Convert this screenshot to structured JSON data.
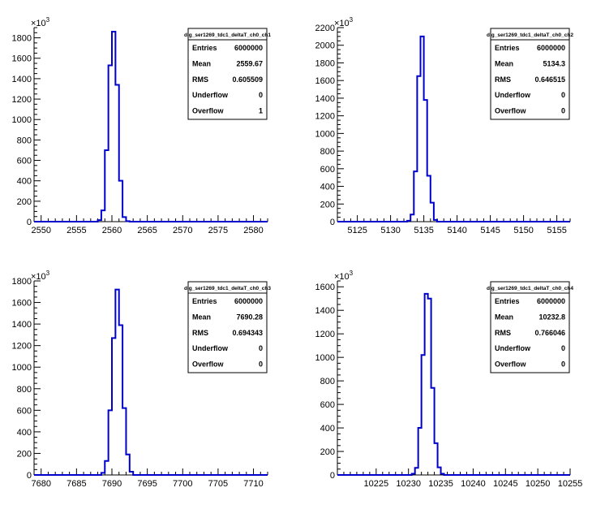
{
  "chart_data": [
    {
      "type": "bar",
      "title": "dig_ser1269_tdc1_deltaT_ch0_ch1",
      "exponent_label": "×10³",
      "xlim": [
        2549,
        2582
      ],
      "xticks": [
        "2550",
        "2555",
        "2560",
        "2565",
        "2570",
        "2575",
        "2580"
      ],
      "ylim": [
        0,
        1900
      ],
      "yticks": [
        "0",
        "200",
        "400",
        "600",
        "800",
        "1000",
        "1200",
        "1400",
        "1600",
        "1800"
      ],
      "bin_width": 0.5,
      "bins": [
        {
          "x": 2558.0,
          "y": 15
        },
        {
          "x": 2558.5,
          "y": 110
        },
        {
          "x": 2559.0,
          "y": 700
        },
        {
          "x": 2559.5,
          "y": 1530
        },
        {
          "x": 2560.0,
          "y": 1860
        },
        {
          "x": 2560.5,
          "y": 1340
        },
        {
          "x": 2561.0,
          "y": 400
        },
        {
          "x": 2561.5,
          "y": 45
        },
        {
          "x": 2562.0,
          "y": 5
        }
      ],
      "stats": [
        {
          "name": "Entries",
          "value": "6000000"
        },
        {
          "name": "Mean",
          "value": "2559.67"
        },
        {
          "name": "RMS",
          "value": "0.605509"
        },
        {
          "name": "Underflow",
          "value": "0"
        },
        {
          "name": "Overflow",
          "value": "1"
        }
      ]
    },
    {
      "type": "bar",
      "title": "dig_ser1269_tdc1_deltaT_ch0_ch2",
      "exponent_label": "×10³",
      "xlim": [
        5122,
        5157
      ],
      "xticks": [
        "5125",
        "5130",
        "5135",
        "5140",
        "5145",
        "5150",
        "5155"
      ],
      "ylim": [
        0,
        2200
      ],
      "yticks": [
        "0",
        "200",
        "400",
        "600",
        "800",
        "1000",
        "1200",
        "1400",
        "1600",
        "1800",
        "2000",
        "2200"
      ],
      "bin_width": 0.5,
      "bins": [
        {
          "x": 5132.5,
          "y": 10
        },
        {
          "x": 5133.0,
          "y": 80
        },
        {
          "x": 5133.5,
          "y": 570
        },
        {
          "x": 5134.0,
          "y": 1650
        },
        {
          "x": 5134.5,
          "y": 2100
        },
        {
          "x": 5135.0,
          "y": 1380
        },
        {
          "x": 5135.5,
          "y": 520
        },
        {
          "x": 5136.0,
          "y": 215
        },
        {
          "x": 5136.5,
          "y": 20
        }
      ],
      "stats": [
        {
          "name": "Entries",
          "value": "6000000"
        },
        {
          "name": "Mean",
          "value": "5134.3"
        },
        {
          "name": "RMS",
          "value": "0.646515"
        },
        {
          "name": "Underflow",
          "value": "0"
        },
        {
          "name": "Overflow",
          "value": "0"
        }
      ]
    },
    {
      "type": "bar",
      "title": "dig_ser1269_tdc1_deltaT_ch0_ch3",
      "exponent_label": "×10³",
      "xlim": [
        7679,
        7712
      ],
      "xticks": [
        "7680",
        "7685",
        "7690",
        "7695",
        "7700",
        "7705",
        "7710"
      ],
      "ylim": [
        0,
        1800
      ],
      "yticks": [
        "0",
        "200",
        "400",
        "600",
        "800",
        "1000",
        "1200",
        "1400",
        "1600",
        "1800"
      ],
      "bin_width": 0.5,
      "bins": [
        {
          "x": 7688.5,
          "y": 20
        },
        {
          "x": 7689.0,
          "y": 130
        },
        {
          "x": 7689.5,
          "y": 600
        },
        {
          "x": 7690.0,
          "y": 1270
        },
        {
          "x": 7690.5,
          "y": 1720
        },
        {
          "x": 7691.0,
          "y": 1390
        },
        {
          "x": 7691.5,
          "y": 620
        },
        {
          "x": 7692.0,
          "y": 190
        },
        {
          "x": 7692.5,
          "y": 30
        }
      ],
      "stats": [
        {
          "name": "Entries",
          "value": "6000000"
        },
        {
          "name": "Mean",
          "value": "7690.28"
        },
        {
          "name": "RMS",
          "value": "0.694343"
        },
        {
          "name": "Underflow",
          "value": "0"
        },
        {
          "name": "Overflow",
          "value": "0"
        }
      ]
    },
    {
      "type": "bar",
      "title": "dig_ser1269_tdc1_deltaT_ch0_ch4",
      "exponent_label": "×10³",
      "xlim": [
        10219,
        10255
      ],
      "xticks": [
        "10225",
        "10230",
        "10235",
        "10240",
        "10245",
        "10250",
        "10255"
      ],
      "ylim": [
        0,
        1650
      ],
      "yticks": [
        "0",
        "200",
        "400",
        "600",
        "800",
        "1000",
        "1200",
        "1400",
        "1600"
      ],
      "bin_width": 0.5,
      "bins": [
        {
          "x": 10230.5,
          "y": 10
        },
        {
          "x": 10231.0,
          "y": 60
        },
        {
          "x": 10231.5,
          "y": 400
        },
        {
          "x": 10232.0,
          "y": 1020
        },
        {
          "x": 10232.5,
          "y": 1540
        },
        {
          "x": 10233.0,
          "y": 1500
        },
        {
          "x": 10233.5,
          "y": 740
        },
        {
          "x": 10234.0,
          "y": 270
        },
        {
          "x": 10234.5,
          "y": 65
        },
        {
          "x": 10235.0,
          "y": 10
        }
      ],
      "stats": [
        {
          "name": "Entries",
          "value": "6000000"
        },
        {
          "name": "Mean",
          "value": "10232.8"
        },
        {
          "name": "RMS",
          "value": "0.766046"
        },
        {
          "name": "Underflow",
          "value": "0"
        },
        {
          "name": "Overflow",
          "value": "0"
        }
      ]
    }
  ]
}
